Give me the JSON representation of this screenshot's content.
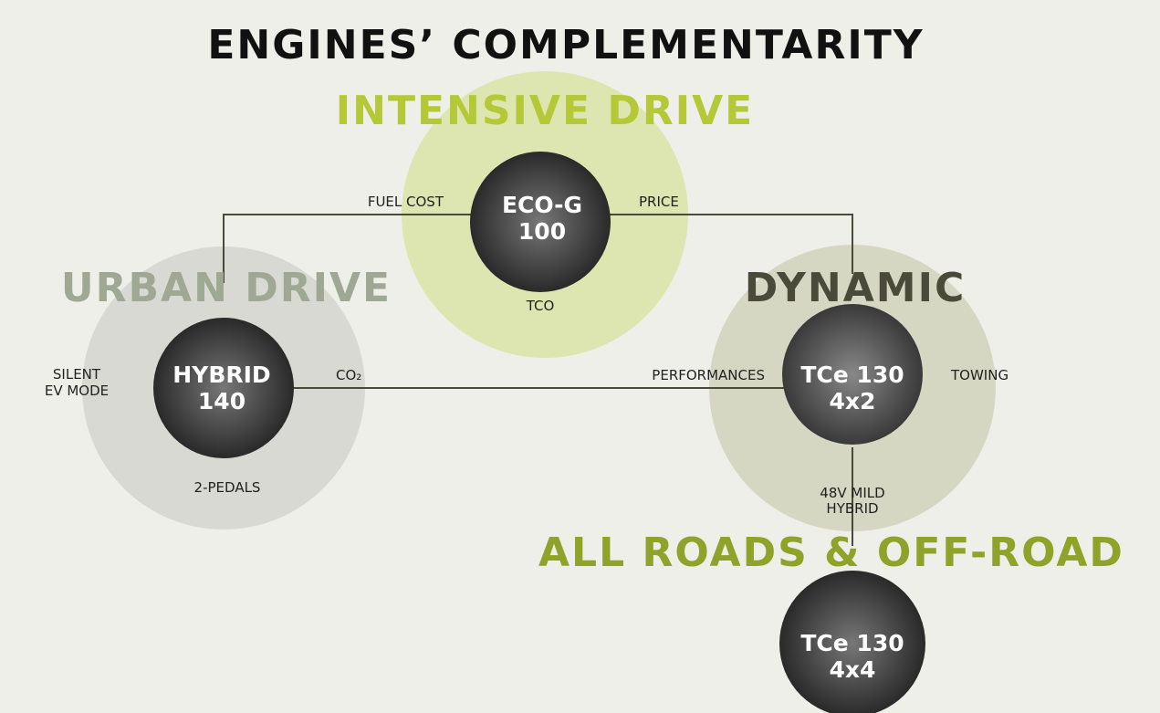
{
  "title": "ENGINES’ COMPLEMENTARITY",
  "segments": {
    "intensive": {
      "heading": "INTENSIVE DRIVE",
      "engine": [
        "ECO-G",
        "100"
      ],
      "labels": [
        "FUEL COST",
        "PRICE",
        "TCO"
      ]
    },
    "urban": {
      "heading": "URBAN DRIVE",
      "engine": [
        "HYBRID",
        "140"
      ],
      "labels": [
        [
          "SILENT",
          "EV MODE"
        ],
        "CO₂",
        "2-PEDALS"
      ]
    },
    "dynamic": {
      "heading": "DYNAMIC",
      "engine": [
        "TCe 130",
        "4x2"
      ],
      "labels": [
        "PERFORMANCES",
        "TOWING",
        [
          "48V MILD",
          "HYBRID"
        ]
      ]
    },
    "allroads": {
      "heading": "ALL ROADS & OFF-ROAD",
      "engine": [
        "TCe 130",
        "4x4"
      ]
    }
  }
}
